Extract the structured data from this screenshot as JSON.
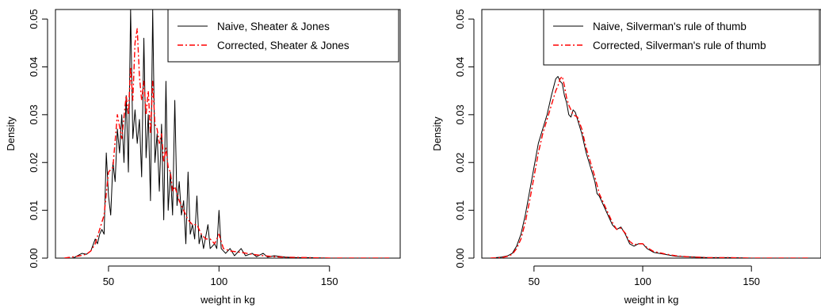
{
  "chart_data": [
    {
      "type": "line",
      "title": "",
      "xlabel": "weight in kg",
      "ylabel": "Density",
      "xlim": [
        26,
        182
      ],
      "ylim": [
        0,
        0.052
      ],
      "xticks": [
        50,
        100,
        150
      ],
      "yticks": [
        0.0,
        0.01,
        0.02,
        0.03,
        0.04,
        0.05
      ],
      "ytick_labels": [
        "0.00",
        "0.01",
        "0.02",
        "0.03",
        "0.04",
        "0.05"
      ],
      "grid": false,
      "legend_position": "top-right",
      "series": [
        {
          "name": "Naive, Sheater & Jones",
          "color": "#000000",
          "dash": "solid",
          "points": [
            [
              30,
              0
            ],
            [
              34,
              0
            ],
            [
              36,
              0.0005
            ],
            [
              38,
              0.001
            ],
            [
              40,
              0.0008
            ],
            [
              42,
              0.0015
            ],
            [
              44,
              0.004
            ],
            [
              45,
              0.003
            ],
            [
              46,
              0.005
            ],
            [
              47,
              0.006
            ],
            [
              48,
              0.005
            ],
            [
              49,
              0.022
            ],
            [
              50,
              0.013
            ],
            [
              51,
              0.009
            ],
            [
              52,
              0.02
            ],
            [
              53,
              0.016
            ],
            [
              54,
              0.027
            ],
            [
              55,
              0.022
            ],
            [
              56,
              0.03
            ],
            [
              57,
              0.02
            ],
            [
              58,
              0.034
            ],
            [
              59,
              0.018
            ],
            [
              60,
              0.052
            ],
            [
              61,
              0.025
            ],
            [
              62,
              0.031
            ],
            [
              63,
              0.024
            ],
            [
              64,
              0.029
            ],
            [
              65,
              0.017
            ],
            [
              66,
              0.046
            ],
            [
              67,
              0.021
            ],
            [
              68,
              0.03
            ],
            [
              69,
              0.012
            ],
            [
              70,
              0.052
            ],
            [
              71,
              0.02
            ],
            [
              72,
              0.026
            ],
            [
              73,
              0.014
            ],
            [
              74,
              0.028
            ],
            [
              75,
              0.008
            ],
            [
              76,
              0.037
            ],
            [
              77,
              0.01
            ],
            [
              78,
              0.018
            ],
            [
              79,
              0.009
            ],
            [
              80,
              0.033
            ],
            [
              81,
              0.011
            ],
            [
              82,
              0.016
            ],
            [
              83,
              0.009
            ],
            [
              84,
              0.012
            ],
            [
              85,
              0.003
            ],
            [
              86,
              0.018
            ],
            [
              87,
              0.005
            ],
            [
              88,
              0.007
            ],
            [
              89,
              0.004
            ],
            [
              90,
              0.013
            ],
            [
              91,
              0.003
            ],
            [
              92,
              0.005
            ],
            [
              93,
              0.002
            ],
            [
              95,
              0.007
            ],
            [
              96,
              0.002
            ],
            [
              98,
              0.003
            ],
            [
              99,
              0.002
            ],
            [
              100,
              0.01
            ],
            [
              101,
              0.002
            ],
            [
              103,
              0.001
            ],
            [
              105,
              0.002
            ],
            [
              107,
              0.0005
            ],
            [
              110,
              0.002
            ],
            [
              112,
              0.0005
            ],
            [
              115,
              0.001
            ],
            [
              117,
              0.0003
            ],
            [
              120,
              0.001
            ],
            [
              122,
              0.0002
            ],
            [
              125,
              0.0005
            ],
            [
              130,
              0.0002
            ],
            [
              135,
              0.0001
            ],
            [
              140,
              0.0001
            ],
            [
              150,
              0
            ],
            [
              160,
              0
            ],
            [
              170,
              0
            ],
            [
              177,
              0
            ]
          ]
        },
        {
          "name": "Corrected, Sheater & Jones",
          "color": "#ff0000",
          "dash": "dashdot",
          "points": [
            [
              30,
              0
            ],
            [
              36,
              0.0004
            ],
            [
              40,
              0.0008
            ],
            [
              42,
              0.0015
            ],
            [
              44,
              0.003
            ],
            [
              46,
              0.006
            ],
            [
              48,
              0.009
            ],
            [
              50,
              0.018
            ],
            [
              52,
              0.019
            ],
            [
              54,
              0.03
            ],
            [
              56,
              0.025
            ],
            [
              58,
              0.034
            ],
            [
              59,
              0.03
            ],
            [
              60,
              0.04
            ],
            [
              61,
              0.033
            ],
            [
              62,
              0.045
            ],
            [
              63,
              0.048
            ],
            [
              64,
              0.038
            ],
            [
              65,
              0.033
            ],
            [
              66,
              0.037
            ],
            [
              67,
              0.03
            ],
            [
              68,
              0.035
            ],
            [
              69,
              0.026
            ],
            [
              70,
              0.037
            ],
            [
              71,
              0.028
            ],
            [
              72,
              0.027
            ],
            [
              73,
              0.024
            ],
            [
              74,
              0.026
            ],
            [
              75,
              0.02
            ],
            [
              76,
              0.023
            ],
            [
              77,
              0.019
            ],
            [
              78,
              0.018
            ],
            [
              79,
              0.014
            ],
            [
              80,
              0.015
            ],
            [
              82,
              0.012
            ],
            [
              84,
              0.01
            ],
            [
              86,
              0.008
            ],
            [
              88,
              0.007
            ],
            [
              90,
              0.007
            ],
            [
              92,
              0.005
            ],
            [
              94,
              0.004
            ],
            [
              96,
              0.004
            ],
            [
              98,
              0.003
            ],
            [
              100,
              0.005
            ],
            [
              102,
              0.002
            ],
            [
              105,
              0.0015
            ],
            [
              110,
              0.0012
            ],
            [
              115,
              0.0008
            ],
            [
              120,
              0.0005
            ],
            [
              125,
              0.0003
            ],
            [
              130,
              0.0002
            ],
            [
              140,
              0.0001
            ],
            [
              150,
              0
            ],
            [
              160,
              0
            ],
            [
              177,
              0
            ]
          ]
        }
      ]
    },
    {
      "type": "line",
      "title": "",
      "xlabel": "weight in kg",
      "ylabel": "Density",
      "xlim": [
        26,
        182
      ],
      "ylim": [
        0,
        0.052
      ],
      "xticks": [
        50,
        100,
        150
      ],
      "yticks": [
        0.0,
        0.01,
        0.02,
        0.03,
        0.04,
        0.05
      ],
      "ytick_labels": [
        "0.00",
        "0.01",
        "0.02",
        "0.03",
        "0.04",
        "0.05"
      ],
      "grid": false,
      "legend_position": "top-right",
      "series": [
        {
          "name": "Naive, Silverman's rule of thumb",
          "color": "#000000",
          "dash": "solid",
          "points": [
            [
              30,
              0
            ],
            [
              35,
              0.0002
            ],
            [
              38,
              0.0005
            ],
            [
              40,
              0.001
            ],
            [
              42,
              0.0025
            ],
            [
              44,
              0.005
            ],
            [
              46,
              0.009
            ],
            [
              48,
              0.014
            ],
            [
              50,
              0.019
            ],
            [
              52,
              0.024
            ],
            [
              54,
              0.027
            ],
            [
              56,
              0.03
            ],
            [
              58,
              0.034
            ],
            [
              60,
              0.0375
            ],
            [
              61,
              0.038
            ],
            [
              62,
              0.037
            ],
            [
              63,
              0.0365
            ],
            [
              64,
              0.034
            ],
            [
              65,
              0.0325
            ],
            [
              66,
              0.03
            ],
            [
              67,
              0.0295
            ],
            [
              68,
              0.031
            ],
            [
              69,
              0.0305
            ],
            [
              70,
              0.029
            ],
            [
              72,
              0.026
            ],
            [
              74,
              0.022
            ],
            [
              76,
              0.019
            ],
            [
              78,
              0.016
            ],
            [
              79,
              0.0135
            ],
            [
              80,
              0.013
            ],
            [
              82,
              0.011
            ],
            [
              84,
              0.009
            ],
            [
              86,
              0.007
            ],
            [
              88,
              0.006
            ],
            [
              90,
              0.0065
            ],
            [
              92,
              0.005
            ],
            [
              94,
              0.003
            ],
            [
              96,
              0.0025
            ],
            [
              98,
              0.003
            ],
            [
              100,
              0.003
            ],
            [
              102,
              0.002
            ],
            [
              105,
              0.0012
            ],
            [
              110,
              0.0008
            ],
            [
              115,
              0.0004
            ],
            [
              120,
              0.0003
            ],
            [
              125,
              0.0002
            ],
            [
              130,
              0.0001
            ],
            [
              140,
              0.0001
            ],
            [
              150,
              0
            ],
            [
              160,
              0
            ],
            [
              177,
              0
            ]
          ]
        },
        {
          "name": "Corrected, Silverman's rule of thumb",
          "color": "#ff0000",
          "dash": "dashdot",
          "points": [
            [
              30,
              0
            ],
            [
              35,
              0.0001
            ],
            [
              38,
              0.0004
            ],
            [
              40,
              0.0008
            ],
            [
              42,
              0.002
            ],
            [
              44,
              0.004
            ],
            [
              46,
              0.0075
            ],
            [
              48,
              0.012
            ],
            [
              50,
              0.017
            ],
            [
              52,
              0.022
            ],
            [
              54,
              0.026
            ],
            [
              56,
              0.029
            ],
            [
              58,
              0.032
            ],
            [
              60,
              0.035
            ],
            [
              61,
              0.036
            ],
            [
              62,
              0.0375
            ],
            [
              63,
              0.038
            ],
            [
              64,
              0.036
            ],
            [
              65,
              0.0335
            ],
            [
              66,
              0.032
            ],
            [
              68,
              0.03
            ],
            [
              70,
              0.0295
            ],
            [
              72,
              0.027
            ],
            [
              74,
              0.023
            ],
            [
              76,
              0.02
            ],
            [
              78,
              0.017
            ],
            [
              80,
              0.0135
            ],
            [
              82,
              0.0115
            ],
            [
              84,
              0.0095
            ],
            [
              86,
              0.0075
            ],
            [
              88,
              0.006
            ],
            [
              90,
              0.0063
            ],
            [
              92,
              0.0052
            ],
            [
              94,
              0.0035
            ],
            [
              96,
              0.0028
            ],
            [
              98,
              0.003
            ],
            [
              100,
              0.003
            ],
            [
              102,
              0.0022
            ],
            [
              105,
              0.0014
            ],
            [
              110,
              0.0009
            ],
            [
              115,
              0.0005
            ],
            [
              120,
              0.0003
            ],
            [
              125,
              0.0002
            ],
            [
              130,
              0.0001
            ],
            [
              140,
              0.0001
            ],
            [
              150,
              0
            ],
            [
              160,
              0
            ],
            [
              177,
              0
            ]
          ]
        }
      ]
    }
  ]
}
